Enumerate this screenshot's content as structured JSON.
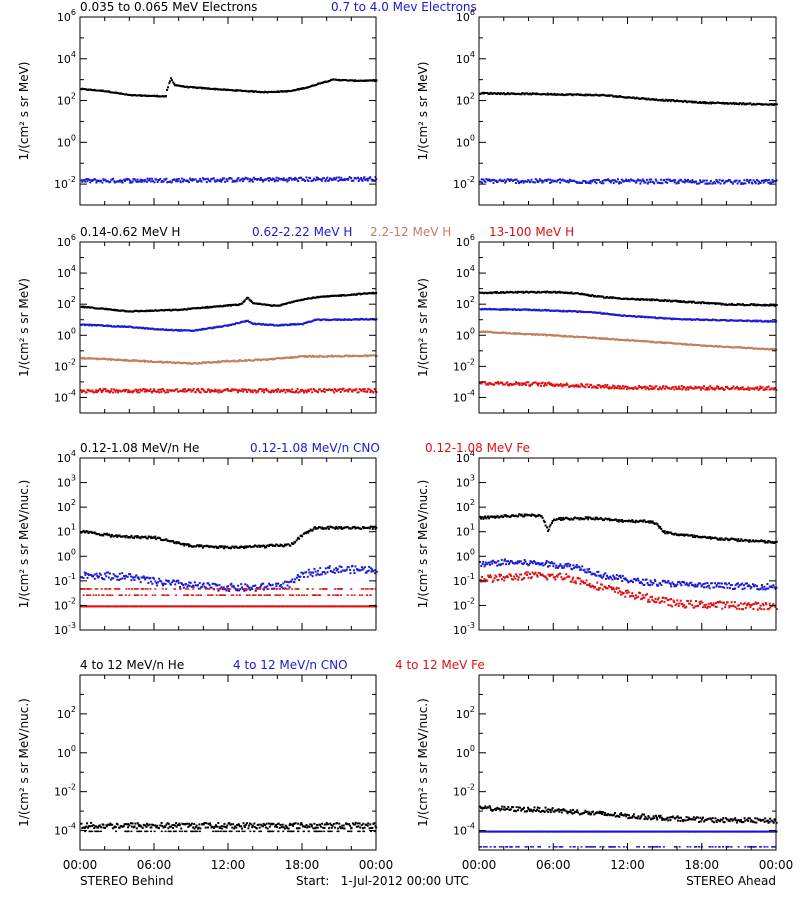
{
  "colors": {
    "black": "#000000",
    "blue": "#1a1ad6",
    "tan": "#c08060",
    "red": "#e01010",
    "frame": "#000000"
  },
  "footer": {
    "left": "STEREO Behind",
    "center": "Start:   1-Jul-2012 00:00 UTC",
    "right": "STEREO Ahead"
  },
  "x_axis": {
    "unit": "hours",
    "range": [
      0,
      24
    ],
    "ticks": [
      0,
      6,
      12,
      18,
      24
    ],
    "tick_labels": [
      "00:00",
      "06:00",
      "12:00",
      "18:00",
      "00:00"
    ]
  },
  "rows": [
    {
      "id": "electrons",
      "legend": [
        {
          "text": "0.035 to 0.065 MeV Electrons",
          "color": "black"
        },
        {
          "text": "0.7 to 4.0 Mev Electrons",
          "color": "blue"
        }
      ]
    },
    {
      "id": "protons",
      "legend": [
        {
          "text": "0.14-0.62 MeV H",
          "color": "black"
        },
        {
          "text": "0.62-2.22 MeV H",
          "color": "blue"
        },
        {
          "text": "2.2-12 MeV H",
          "color": "tan"
        },
        {
          "text": "13-100 MeV H",
          "color": "red"
        }
      ]
    },
    {
      "id": "ions-low",
      "legend": [
        {
          "text": "0.12-1.08 MeV/n He",
          "color": "black"
        },
        {
          "text": "0.12-1.08 MeV/n CNO",
          "color": "blue"
        },
        {
          "text": "0.12-1.08 MeV Fe",
          "color": "red"
        }
      ]
    },
    {
      "id": "ions-high",
      "legend": [
        {
          "text": "4 to 12 MeV/n He",
          "color": "black"
        },
        {
          "text": "4 to 12 MeV/n CNO",
          "color": "blue"
        },
        {
          "text": "4 to 12 MeV Fe",
          "color": "red"
        }
      ]
    }
  ],
  "chart_data": [
    {
      "type": "scatter",
      "panel": "electrons-behind",
      "row": 0,
      "col": 0,
      "ylabel": "1/(cm² s sr MeV)",
      "yscale": "log",
      "ylim_exp": [
        -3,
        6
      ],
      "ytick_exps": [
        -2,
        0,
        2,
        4,
        6
      ],
      "series": [
        {
          "name": "0.035 to 0.065 MeV Electrons",
          "color": "black",
          "noise": 0.02,
          "points": [
            [
              0,
              2.6
            ],
            [
              2,
              2.5
            ],
            [
              4,
              2.3
            ],
            [
              6.9,
              2.25
            ],
            [
              7.0,
              2.6
            ],
            [
              7.3,
              3.1
            ],
            [
              7.6,
              2.8
            ],
            [
              8.5,
              2.7
            ],
            [
              12,
              2.55
            ],
            [
              15,
              2.45
            ],
            [
              17,
              2.5
            ],
            [
              18.5,
              2.7
            ],
            [
              19.5,
              2.9
            ],
            [
              20.5,
              3.05
            ],
            [
              22,
              3.0
            ],
            [
              24,
              3.0
            ]
          ]
        },
        {
          "name": "0.7 to 4.0 Mev Electrons",
          "color": "blue",
          "noise": 0.1,
          "points": [
            [
              0,
              -1.8
            ],
            [
              24,
              -1.7
            ]
          ]
        }
      ]
    },
    {
      "type": "scatter",
      "panel": "electrons-ahead",
      "row": 0,
      "col": 1,
      "ylabel": "1/(cm² s sr MeV)",
      "yscale": "log",
      "ylim_exp": [
        -3,
        6
      ],
      "ytick_exps": [
        -2,
        0,
        2,
        4,
        6
      ],
      "series": [
        {
          "name": "0.035 to 0.065 MeV Electrons",
          "color": "black",
          "noise": 0.03,
          "points": [
            [
              0,
              2.4
            ],
            [
              6,
              2.35
            ],
            [
              10,
              2.3
            ],
            [
              14,
              2.1
            ],
            [
              18,
              1.95
            ],
            [
              24,
              1.85
            ]
          ]
        },
        {
          "name": "0.7 to 4.0 Mev Electrons",
          "color": "blue",
          "noise": 0.1,
          "points": [
            [
              0,
              -1.8
            ],
            [
              24,
              -1.85
            ]
          ]
        }
      ]
    },
    {
      "type": "scatter",
      "panel": "protons-behind",
      "row": 1,
      "col": 0,
      "ylabel": "1/(cm² s sr MeV)",
      "yscale": "log",
      "ylim_exp": [
        -5,
        6
      ],
      "ytick_exps": [
        -4,
        -2,
        0,
        2,
        4,
        6
      ],
      "series": [
        {
          "name": "0.14-0.62 MeV H",
          "color": "black",
          "noise": 0.03,
          "points": [
            [
              0,
              1.9
            ],
            [
              4,
              1.6
            ],
            [
              8,
              1.7
            ],
            [
              10,
              1.85
            ],
            [
              13,
              2.05
            ],
            [
              13.5,
              2.5
            ],
            [
              14,
              2.1
            ],
            [
              16,
              1.95
            ],
            [
              17.5,
              2.3
            ],
            [
              19,
              2.5
            ],
            [
              24,
              2.8
            ]
          ]
        },
        {
          "name": "0.62-2.22 MeV H",
          "color": "blue",
          "noise": 0.03,
          "points": [
            [
              0,
              0.75
            ],
            [
              4,
              0.6
            ],
            [
              6,
              0.45
            ],
            [
              9,
              0.35
            ],
            [
              12,
              0.7
            ],
            [
              13.5,
              1.0
            ],
            [
              14,
              0.8
            ],
            [
              16,
              0.7
            ],
            [
              18,
              0.8
            ],
            [
              19,
              1.05
            ],
            [
              24,
              1.1
            ]
          ]
        },
        {
          "name": "2.2-12 MeV H",
          "color": "tan",
          "noise": 0.04,
          "points": [
            [
              0,
              -1.4
            ],
            [
              5,
              -1.6
            ],
            [
              9,
              -1.75
            ],
            [
              12,
              -1.6
            ],
            [
              15,
              -1.5
            ],
            [
              18,
              -1.3
            ],
            [
              24,
              -1.25
            ]
          ]
        },
        {
          "name": "13-100 MeV H",
          "color": "red",
          "noise": 0.12,
          "points": [
            [
              0,
              -3.5
            ],
            [
              24,
              -3.5
            ]
          ]
        }
      ]
    },
    {
      "type": "scatter",
      "panel": "protons-ahead",
      "row": 1,
      "col": 1,
      "ylabel": "1/(cm² s sr MeV)",
      "yscale": "log",
      "ylim_exp": [
        -5,
        6
      ],
      "ytick_exps": [
        -4,
        -2,
        0,
        2,
        4,
        6
      ],
      "series": [
        {
          "name": "0.14-0.62 MeV H",
          "color": "black",
          "noise": 0.04,
          "points": [
            [
              0,
              2.8
            ],
            [
              6,
              2.85
            ],
            [
              8,
              2.75
            ],
            [
              9.5,
              2.55
            ],
            [
              12,
              2.4
            ],
            [
              15,
              2.3
            ],
            [
              20,
              2.05
            ],
            [
              24,
              2.0
            ]
          ]
        },
        {
          "name": "0.62-2.22 MeV H",
          "color": "blue",
          "noise": 0.03,
          "points": [
            [
              0,
              1.75
            ],
            [
              4,
              1.7
            ],
            [
              6,
              1.65
            ],
            [
              9,
              1.55
            ],
            [
              12,
              1.3
            ],
            [
              16,
              1.1
            ],
            [
              24,
              0.95
            ]
          ]
        },
        {
          "name": "2.2-12 MeV H",
          "color": "tan",
          "noise": 0.03,
          "points": [
            [
              0,
              0.3
            ],
            [
              6,
              0.05
            ],
            [
              12,
              -0.25
            ],
            [
              18,
              -0.6
            ],
            [
              24,
              -0.85
            ]
          ]
        },
        {
          "name": "13-100 MeV H",
          "color": "red",
          "noise": 0.12,
          "points": [
            [
              0,
              -3.0
            ],
            [
              6,
              -3.1
            ],
            [
              12,
              -3.3
            ],
            [
              24,
              -3.35
            ]
          ]
        }
      ]
    },
    {
      "type": "scatter",
      "panel": "ions-low-behind",
      "row": 2,
      "col": 0,
      "ylabel": "1/(cm² s sr MeV/nuc.)",
      "yscale": "log",
      "ylim_exp": [
        -3,
        4
      ],
      "ytick_exps": [
        -3,
        -2,
        -1,
        0,
        1,
        2,
        3,
        4
      ],
      "series": [
        {
          "name": "0.12-1.08 MeV/n He",
          "color": "black",
          "noise": 0.05,
          "points": [
            [
              0,
              1.05
            ],
            [
              3,
              0.85
            ],
            [
              6,
              0.8
            ],
            [
              9,
              0.45
            ],
            [
              12,
              0.4
            ],
            [
              15,
              0.45
            ],
            [
              17,
              0.5
            ],
            [
              18,
              0.9
            ],
            [
              19,
              1.2
            ],
            [
              24,
              1.2
            ]
          ]
        },
        {
          "name": "0.12-1.08 MeV/n CNO",
          "color": "blue",
          "noise": 0.15,
          "points": [
            [
              0,
              -0.7
            ],
            [
              4,
              -0.8
            ],
            [
              6,
              -1.0
            ],
            [
              10,
              -1.2
            ],
            [
              14,
              -1.25
            ],
            [
              17,
              -1.1
            ],
            [
              18,
              -0.7
            ],
            [
              20,
              -0.5
            ],
            [
              24,
              -0.5
            ]
          ]
        },
        {
          "name": "0.12-1.08 MeV Fe",
          "color": "red",
          "noise": 0.0,
          "points": [
            [
              0,
              -2.0
            ],
            [
              24,
              -2.0
            ]
          ],
          "extra_levels": [
            -1.55,
            -1.3
          ]
        }
      ]
    },
    {
      "type": "scatter",
      "panel": "ions-low-ahead",
      "row": 2,
      "col": 1,
      "ylabel": "1/(cm² s sr MeV/nuc.)",
      "yscale": "log",
      "ylim_exp": [
        -3,
        4
      ],
      "ytick_exps": [
        -3,
        -2,
        -1,
        0,
        1,
        2,
        3,
        4
      ],
      "series": [
        {
          "name": "0.12-1.08 MeV/n He",
          "color": "black",
          "noise": 0.05,
          "points": [
            [
              0,
              1.6
            ],
            [
              3,
              1.7
            ],
            [
              5,
              1.7
            ],
            [
              5.5,
              1.1
            ],
            [
              6,
              1.55
            ],
            [
              9,
              1.6
            ],
            [
              11,
              1.5
            ],
            [
              14,
              1.45
            ],
            [
              15,
              1.0
            ],
            [
              18,
              0.8
            ],
            [
              24,
              0.6
            ]
          ]
        },
        {
          "name": "0.12-1.08 MeV/n CNO",
          "color": "blue",
          "noise": 0.12,
          "points": [
            [
              0,
              -0.3
            ],
            [
              2,
              -0.2
            ],
            [
              5,
              -0.25
            ],
            [
              8,
              -0.4
            ],
            [
              10,
              -0.75
            ],
            [
              13,
              -1.0
            ],
            [
              18,
              -1.15
            ],
            [
              24,
              -1.2
            ]
          ]
        },
        {
          "name": "0.12-1.08 MeV Fe",
          "color": "red",
          "noise": 0.15,
          "points": [
            [
              0,
              -0.9
            ],
            [
              4,
              -0.75
            ],
            [
              7,
              -0.8
            ],
            [
              9,
              -1.1
            ],
            [
              12,
              -1.5
            ],
            [
              16,
              -1.9
            ],
            [
              24,
              -2.0
            ]
          ]
        }
      ]
    },
    {
      "type": "scatter",
      "panel": "ions-high-behind",
      "row": 3,
      "col": 0,
      "ylabel": "1/(cm² s sr MeV/nuc.)",
      "yscale": "log",
      "ylim_exp": [
        -5,
        4
      ],
      "ytick_exps": [
        -4,
        -2,
        0,
        2
      ],
      "series": [
        {
          "name": "4 to 12 MeV/n He",
          "color": "black",
          "noise": 0.15,
          "points": [
            [
              0,
              -3.7
            ],
            [
              24,
              -3.7
            ]
          ],
          "extra_levels": [
            -4.0
          ]
        },
        {
          "name": "4 to 12 MeV/n CNO",
          "color": "blue",
          "noise": 0.0,
          "points": []
        },
        {
          "name": "4 to 12 MeV Fe",
          "color": "red",
          "noise": 0.0,
          "points": []
        }
      ]
    },
    {
      "type": "scatter",
      "panel": "ions-high-ahead",
      "row": 3,
      "col": 1,
      "ylabel": "1/(cm² s sr MeV/nuc.)",
      "yscale": "log",
      "ylim_exp": [
        -5,
        4
      ],
      "ytick_exps": [
        -4,
        -2,
        0,
        2
      ],
      "series": [
        {
          "name": "4 to 12 MeV/n He",
          "color": "black",
          "noise": 0.12,
          "points": [
            [
              0,
              -2.8
            ],
            [
              6,
              -2.9
            ],
            [
              12,
              -3.2
            ],
            [
              18,
              -3.4
            ],
            [
              24,
              -3.45
            ]
          ],
          "extra_levels": [
            -4.0
          ]
        },
        {
          "name": "4 to 12 MeV/n CNO",
          "color": "blue",
          "noise": 0.0,
          "points": [
            [
              0,
              -4.0
            ],
            [
              24,
              -4.0
            ]
          ],
          "extra_levels": [
            -4.8
          ]
        },
        {
          "name": "4 to 12 MeV Fe",
          "color": "red",
          "noise": 0.0,
          "points": []
        }
      ]
    }
  ]
}
